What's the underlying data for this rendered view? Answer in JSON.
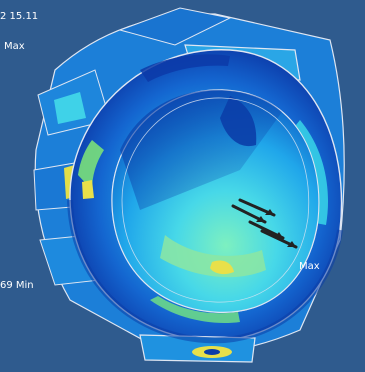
{
  "legend": {
    "time_text": "2 15.11",
    "max_label": "Max",
    "min_label": "69 Min"
  },
  "max_marker_label": "Max",
  "colors": {
    "background": "#2f5b8e",
    "contour_low": "#0a2fb0",
    "contour_mid": "#1fa0e8",
    "contour_cyan": "#35d8e6",
    "contour_green": "#7ae07a",
    "contour_yellow": "#e8e04a",
    "edge_outline": "#dfe6f2"
  }
}
